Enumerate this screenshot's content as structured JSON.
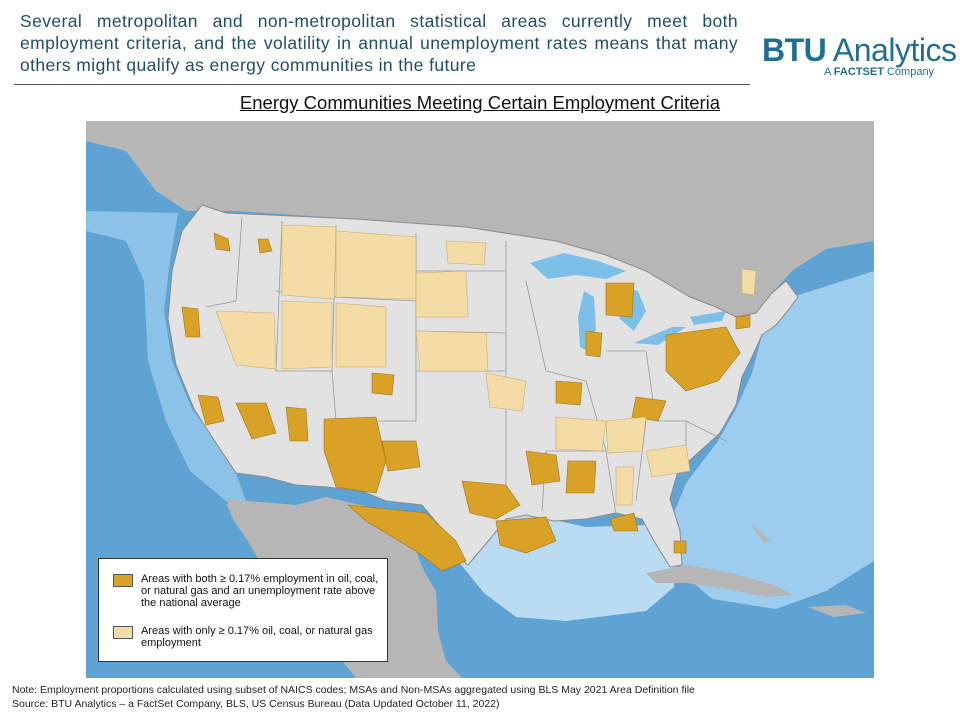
{
  "header": {
    "text": "Several metropolitan and non-metropolitan statistical areas currently meet both employment criteria, and the volatility in annual unemployment rates means that many others might qualify as energy communities in the future"
  },
  "logo": {
    "brand_strong": "BTU",
    "brand_rest": " Analytics",
    "tag_prefix": "A ",
    "tag_strong": "FACTSET",
    "tag_suffix": " Company"
  },
  "map": {
    "title": "Energy Communities Meeting Certain Employment Criteria"
  },
  "legend": {
    "items": [
      {
        "label": "Areas with both ≥ 0.17% employment in oil, coal, or natural gas and an unemployment rate above the national average",
        "color": "#d9a126"
      },
      {
        "label": "Areas with only ≥ 0.17% oil, coal, or natural gas employment",
        "color": "#f3dca6"
      }
    ]
  },
  "colors": {
    "ocean": "#5ea3d3",
    "shelf": "#b9dcf3",
    "land_other": "#b6b6b6",
    "us_base": "#e2e2e2",
    "lakes": "#7cc0ea"
  },
  "notes": {
    "note": "Note:  Employment proportions calculated using subset of NAICS codes; MSAs and Non-MSAs aggregated using BLS May 2021 Area Definition file",
    "source": "Source: BTU Analytics – a FactSet Company, BLS, US Census Bureau (Data Updated October 11, 2022)"
  }
}
